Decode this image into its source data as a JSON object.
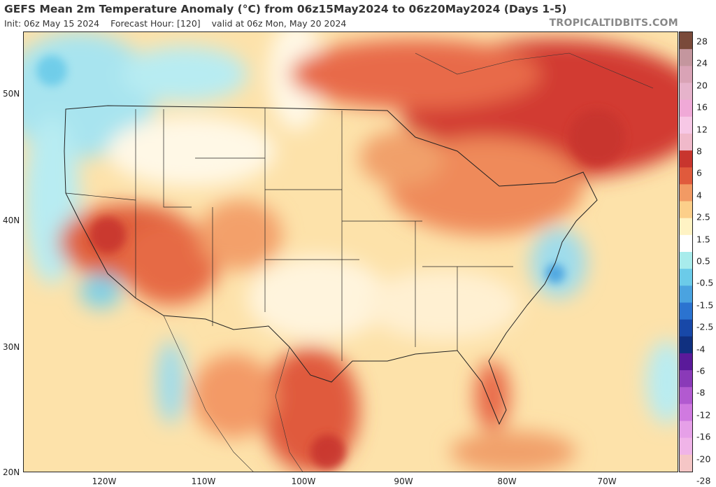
{
  "header": {
    "title": "GEFS Mean 2m Temperature Anomaly (°C) from 06z15May2024 to 06z20May2024 (Days 1-5)",
    "init": "Init: 06z May 15 2024",
    "forecast_hour": "Forecast Hour: [120]",
    "valid": "valid at 06z Mon, May 20 2024",
    "brand": "TROPICALTIDBITS.COM"
  },
  "axes": {
    "lat_labels": [
      "50N",
      "40N",
      "30N",
      "20N"
    ],
    "lon_labels": [
      "120W",
      "110W",
      "100W",
      "90W",
      "80W",
      "70W"
    ]
  },
  "colorbar": {
    "labels": [
      "28",
      "24",
      "20",
      "16",
      "12",
      "8",
      "6",
      "4",
      "2.5",
      "1.5",
      "0.5",
      "-0.5",
      "-1.5",
      "-2.5",
      "-4",
      "-6",
      "-8",
      "-12",
      "-16",
      "-20",
      "-28"
    ],
    "colors": [
      "#7a4a3a",
      "#c4969e",
      "#d9a3b6",
      "#e6b3cb",
      "#f0a9d7",
      "#f7c8e6",
      "#f0b9ca",
      "#c8352e",
      "#e05a3c",
      "#f29a64",
      "#fccf8a",
      "#fff3c4",
      "#ffffff",
      "#a8ecec",
      "#6bcbe9",
      "#4aa3e0",
      "#2b73d0",
      "#1848a8",
      "#103080",
      "#5a1a9a",
      "#8a3ab8",
      "#b25ad0",
      "#d07ae0",
      "#e6a0e8",
      "#f0b4e8",
      "#f5c6c6"
    ]
  },
  "regions": {
    "usa": "contiguous United States",
    "gulf": "Gulf of Mexico"
  }
}
